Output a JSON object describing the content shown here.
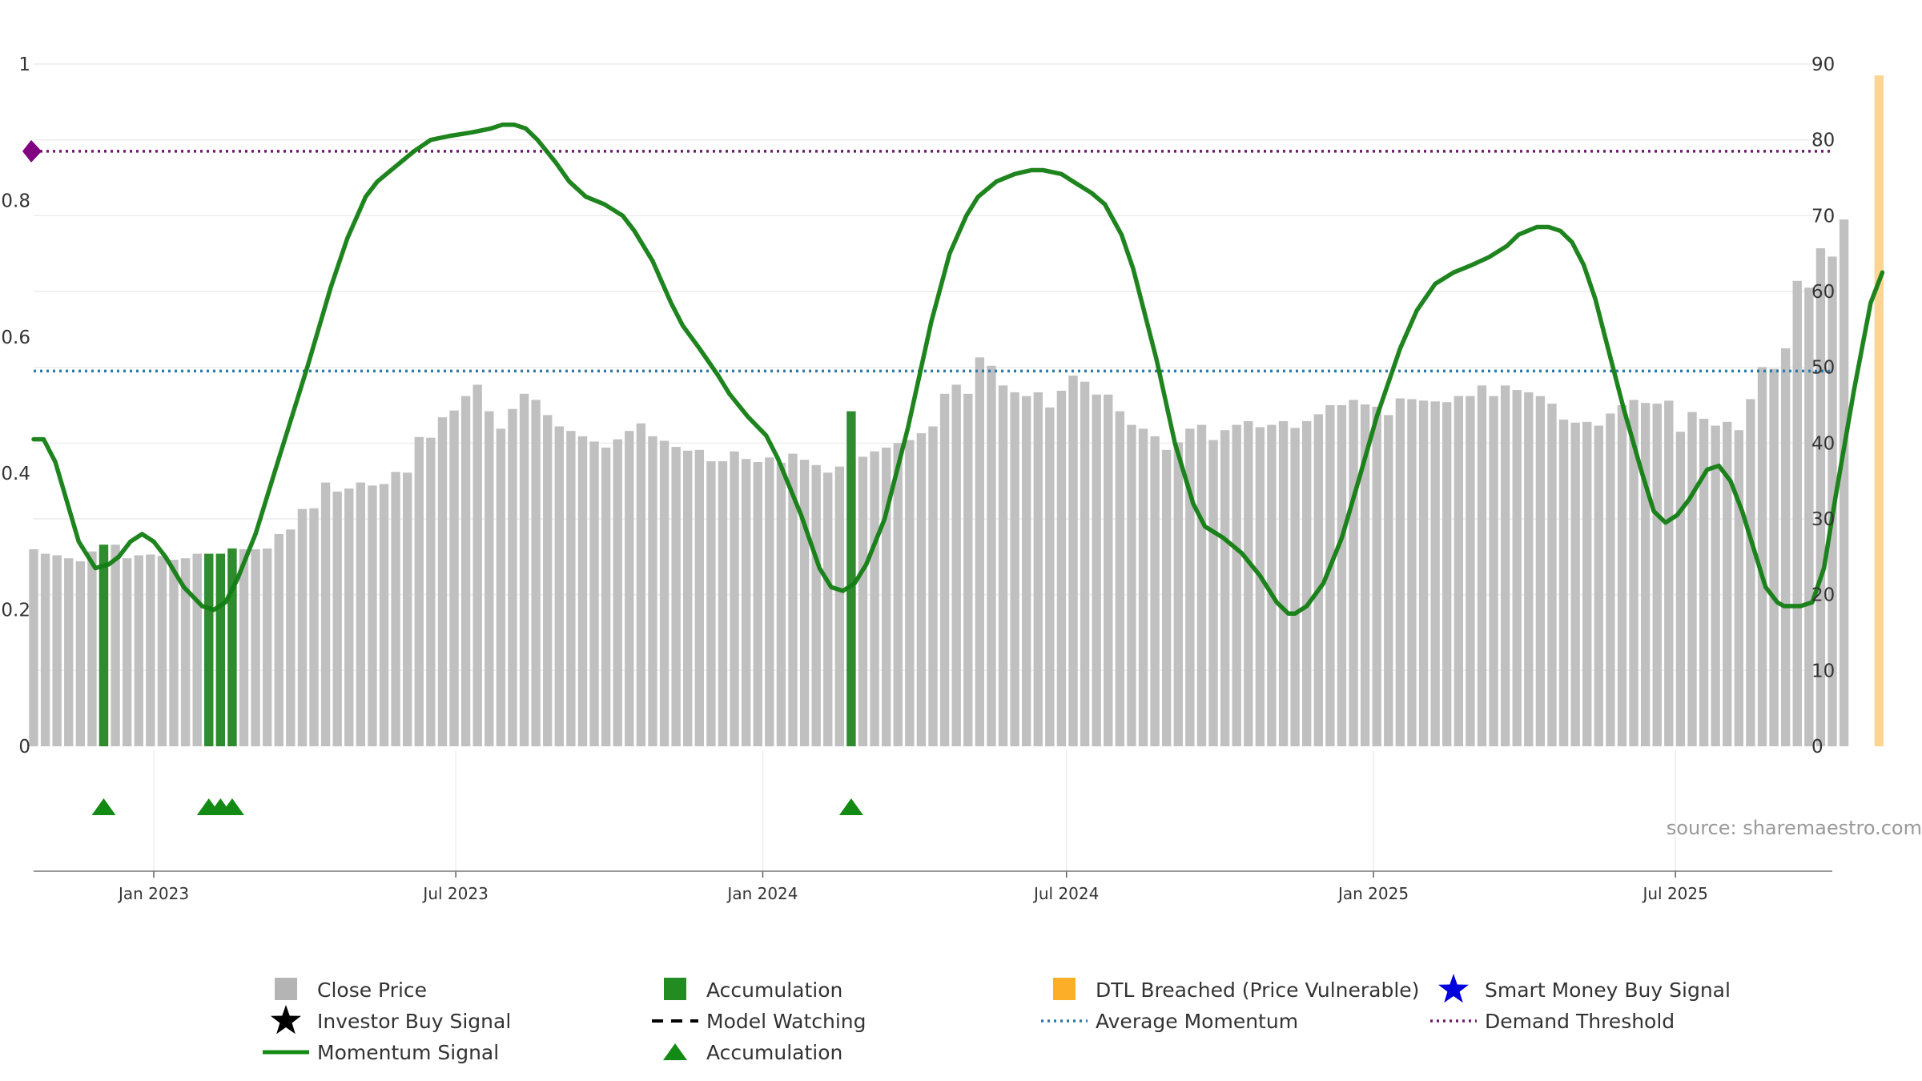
{
  "chart_data": {
    "type": "bar",
    "title": "",
    "source": "source: sharemaestro.com",
    "left_axis": {
      "ylim": [
        0,
        1
      ],
      "ticks": [
        0,
        0.2,
        0.4,
        0.6,
        0.8,
        1
      ],
      "tick_labels": [
        "0",
        "0.2",
        "0.4",
        "0.6",
        "0.8",
        "1"
      ]
    },
    "right_axis": {
      "ylim": [
        0,
        90
      ],
      "ticks": [
        0,
        10,
        20,
        30,
        40,
        50,
        60,
        70,
        80,
        90
      ],
      "tick_labels": [
        "0",
        "10",
        "20",
        "30",
        "40",
        "50",
        "60",
        "70",
        "80",
        "90"
      ]
    },
    "x_axis": {
      "range": [
        "2022-10-21",
        "2025-10-03"
      ],
      "ticks": [
        "2023-01-01",
        "2023-07-01",
        "2024-01-01",
        "2024-07-01",
        "2025-01-01",
        "2025-07-01"
      ],
      "tick_labels": [
        "Jan 2023",
        "Jul 2023",
        "Jan 2024",
        "Jul 2024",
        "Jan 2025",
        "Jul 2025"
      ]
    },
    "grid": true,
    "legend_position": "bottom",
    "series": [
      {
        "name": "Close Price",
        "type": "bar",
        "axis": "right",
        "color": "#c0c0c0",
        "x_start": "2022-10-21",
        "step_days": 7,
        "values": [
          26,
          25.4,
          25.2,
          24.8,
          24.4,
          25.7,
          25.8,
          26.6,
          24.8,
          25.2,
          25.3,
          25.1,
          24.6,
          24.8,
          25.4,
          25.4,
          25.4,
          25.4,
          26,
          26,
          26.1,
          28,
          28.6,
          31.3,
          31.4,
          34.8,
          33.6,
          34,
          34.8,
          34.4,
          34.6,
          36.2,
          36.1,
          40.8,
          40.7,
          43.4,
          44.3,
          46.2,
          47.7,
          44.2,
          41.9,
          44.5,
          46.5,
          45.7,
          43.7,
          42.2,
          41.6,
          40.9,
          40.2,
          39.4,
          40.5,
          41.6,
          42.6,
          40.9,
          40.3,
          39.5,
          39,
          39.1,
          37.6,
          37.6,
          38.9,
          37.9,
          37.5,
          38.1,
          37.4,
          38.6,
          37.8,
          37.1,
          36.1,
          36.9,
          37.8,
          38.2,
          38.9,
          39.4,
          40,
          40.4,
          41.3,
          42.2,
          46.5,
          47.7,
          46.5,
          51.3,
          50.2,
          47.6,
          46.7,
          46.2,
          46.7,
          44.7,
          46.9,
          48.9,
          48.1,
          46.4,
          46.4,
          44.2,
          42.4,
          41.9,
          40.9,
          39.1,
          40.1,
          41.9,
          42.4,
          40.4,
          41.7,
          42.4,
          42.9,
          42.1,
          42.4,
          42.9,
          42,
          42.9,
          43.8,
          45,
          45,
          45.7,
          45.1,
          44.8,
          43.7,
          45.9,
          45.8,
          45.6,
          45.5,
          45.4,
          46.2,
          46.2,
          47.6,
          46.2,
          47.6,
          47,
          46.7,
          46.2,
          45.2,
          43.1,
          42.7,
          42.8,
          42.3,
          43.9,
          45,
          45.7,
          45.3,
          45.2,
          45.6,
          41.5,
          44.1,
          43.2,
          42.3,
          42.8,
          41.7,
          45.8,
          50,
          49.8,
          52.5,
          61.4,
          60.5,
          65.7,
          64.6,
          69.5
        ]
      },
      {
        "name": "Momentum Signal",
        "type": "line",
        "axis": "right",
        "color": "#127d12",
        "points": [
          [
            "2022-10-21",
            40.5
          ],
          [
            "2022-10-27",
            40.5
          ],
          [
            "2022-11-03",
            37.5
          ],
          [
            "2022-11-17",
            27
          ],
          [
            "2022-11-27",
            23.5
          ],
          [
            "2022-12-05",
            24
          ],
          [
            "2022-12-11",
            25
          ],
          [
            "2022-12-18",
            27
          ],
          [
            "2022-12-25",
            28
          ],
          [
            "2023-01-01",
            27
          ],
          [
            "2023-01-08",
            25
          ],
          [
            "2023-01-19",
            21
          ],
          [
            "2023-01-30",
            18.5
          ],
          [
            "2023-02-06",
            18
          ],
          [
            "2023-02-13",
            19
          ],
          [
            "2023-02-20",
            22
          ],
          [
            "2023-03-03",
            28
          ],
          [
            "2023-03-17",
            38
          ],
          [
            "2023-04-03",
            50
          ],
          [
            "2023-04-17",
            60.5
          ],
          [
            "2023-04-27",
            67
          ],
          [
            "2023-05-08",
            72.5
          ],
          [
            "2023-05-15",
            74.5
          ],
          [
            "2023-05-26",
            76.5
          ],
          [
            "2023-06-06",
            78.5
          ],
          [
            "2023-06-16",
            80
          ],
          [
            "2023-06-27",
            80.5
          ],
          [
            "2023-07-11",
            81
          ],
          [
            "2023-07-22",
            81.5
          ],
          [
            "2023-07-29",
            82
          ],
          [
            "2023-08-05",
            82
          ],
          [
            "2023-08-12",
            81.5
          ],
          [
            "2023-08-19",
            80
          ],
          [
            "2023-08-30",
            77
          ],
          [
            "2023-09-07",
            74.5
          ],
          [
            "2023-09-17",
            72.5
          ],
          [
            "2023-09-28",
            71.5
          ],
          [
            "2023-10-09",
            70
          ],
          [
            "2023-10-16",
            68
          ],
          [
            "2023-10-27",
            64
          ],
          [
            "2023-11-07",
            58.5
          ],
          [
            "2023-11-14",
            55.5
          ],
          [
            "2023-11-24",
            52.5
          ],
          [
            "2023-12-05",
            49
          ],
          [
            "2023-12-12",
            46.5
          ],
          [
            "2023-12-23",
            43.5
          ],
          [
            "2024-01-03",
            41
          ],
          [
            "2024-01-10",
            38
          ],
          [
            "2024-01-24",
            30.5
          ],
          [
            "2024-02-04",
            23.5
          ],
          [
            "2024-02-11",
            21
          ],
          [
            "2024-02-18",
            20.5
          ],
          [
            "2024-02-25",
            21.5
          ],
          [
            "2024-03-03",
            24
          ],
          [
            "2024-03-14",
            30
          ],
          [
            "2024-03-28",
            42
          ],
          [
            "2024-04-11",
            56
          ],
          [
            "2024-04-22",
            65
          ],
          [
            "2024-05-02",
            70
          ],
          [
            "2024-05-09",
            72.5
          ],
          [
            "2024-05-20",
            74.5
          ],
          [
            "2024-05-31",
            75.5
          ],
          [
            "2024-06-10",
            76
          ],
          [
            "2024-06-17",
            76
          ],
          [
            "2024-06-28",
            75.5
          ],
          [
            "2024-07-05",
            74.5
          ],
          [
            "2024-07-16",
            73
          ],
          [
            "2024-07-24",
            71.5
          ],
          [
            "2024-08-03",
            67.5
          ],
          [
            "2024-08-10",
            63
          ],
          [
            "2024-08-24",
            51
          ],
          [
            "2024-09-04",
            40
          ],
          [
            "2024-09-15",
            32
          ],
          [
            "2024-09-22",
            29
          ],
          [
            "2024-10-03",
            27.5
          ],
          [
            "2024-10-14",
            25.5
          ],
          [
            "2024-10-25",
            22.5
          ],
          [
            "2024-11-04",
            19
          ],
          [
            "2024-11-11",
            17.5
          ],
          [
            "2024-11-15",
            17.5
          ],
          [
            "2024-11-22",
            18.5
          ],
          [
            "2024-12-02",
            21.5
          ],
          [
            "2024-12-13",
            27.5
          ],
          [
            "2024-12-23",
            35
          ],
          [
            "2025-01-03",
            43.5
          ],
          [
            "2025-01-17",
            52.5
          ],
          [
            "2025-01-27",
            57.5
          ],
          [
            "2025-02-07",
            61
          ],
          [
            "2025-02-18",
            62.5
          ],
          [
            "2025-03-01",
            63.5
          ],
          [
            "2025-03-11",
            64.5
          ],
          [
            "2025-03-22",
            66
          ],
          [
            "2025-03-29",
            67.5
          ],
          [
            "2025-04-09",
            68.5
          ],
          [
            "2025-04-16",
            68.5
          ],
          [
            "2025-04-23",
            68
          ],
          [
            "2025-04-30",
            66.5
          ],
          [
            "2025-05-07",
            63.5
          ],
          [
            "2025-05-14",
            59
          ],
          [
            "2025-05-21",
            53
          ],
          [
            "2025-05-31",
            44.5
          ],
          [
            "2025-06-11",
            36
          ],
          [
            "2025-06-18",
            31
          ],
          [
            "2025-06-25",
            29.5
          ],
          [
            "2025-07-02",
            30.5
          ],
          [
            "2025-07-09",
            32.5
          ],
          [
            "2025-07-20",
            36.5
          ],
          [
            "2025-07-27",
            37
          ],
          [
            "2025-08-03",
            35
          ],
          [
            "2025-08-10",
            31
          ],
          [
            "2025-08-17",
            26
          ],
          [
            "2025-08-24",
            21
          ],
          [
            "2025-08-31",
            19
          ],
          [
            "2025-09-04",
            18.5
          ],
          [
            "2025-09-14",
            18.5
          ],
          [
            "2025-09-21",
            19
          ],
          [
            "2025-09-28",
            23.5
          ],
          [
            "2025-10-05",
            33
          ],
          [
            "2025-10-16",
            47
          ],
          [
            "2025-10-26",
            58.5
          ],
          [
            "2025-11-02",
            62.5
          ]
        ]
      },
      {
        "name": "Accumulation",
        "type": "bar",
        "axis": "right",
        "color": "#2e8b2e",
        "dates": [
          "2022-12-02",
          "2023-02-03",
          "2023-02-10",
          "2023-02-17",
          "2024-02-23"
        ],
        "values": [
          26.6,
          25.4,
          25.4,
          26.1,
          44.2
        ]
      },
      {
        "name": "Accumulation",
        "type": "marker",
        "marker": "triangle",
        "color": "#138a13",
        "dates": [
          "2022-12-02",
          "2023-02-03",
          "2023-02-10",
          "2023-02-17",
          "2024-02-23"
        ]
      },
      {
        "name": "Average Momentum",
        "type": "hline",
        "axis": "right",
        "value": 49.5,
        "color": "#2f7aa8"
      },
      {
        "name": "Demand Threshold",
        "type": "hline",
        "axis": "right",
        "value": 78.5,
        "color": "#6b1f6b"
      },
      {
        "name": "DTL Breached (Price Vulnerable)",
        "type": "bar",
        "axis": "right",
        "color": "#fcd592",
        "dates": [
          "2025-10-31"
        ],
        "values": [
          88.5
        ]
      }
    ],
    "legend": [
      {
        "label": "Close Price",
        "symbol": "square",
        "color": "#b4b4b4"
      },
      {
        "label": "Accumulation",
        "symbol": "square",
        "color": "#228b22"
      },
      {
        "label": "DTL Breached (Price Vulnerable)",
        "symbol": "square",
        "color": "#fcae29"
      },
      {
        "label": "Smart Money Buy Signal",
        "symbol": "star",
        "color": "#0000dd"
      },
      {
        "label": "Investor Buy Signal",
        "symbol": "star",
        "color": "#000000"
      },
      {
        "label": "Model Watching",
        "symbol": "dash",
        "color": "#000000"
      },
      {
        "label": "Average Momentum",
        "symbol": "dot",
        "color": "#2f7aa8"
      },
      {
        "label": "Demand Threshold",
        "symbol": "dot",
        "color": "#6b1f6b"
      },
      {
        "label": "Momentum Signal",
        "symbol": "line",
        "color": "#138a13"
      },
      {
        "label": "Accumulation",
        "symbol": "triangle",
        "color": "#138a13"
      }
    ]
  }
}
